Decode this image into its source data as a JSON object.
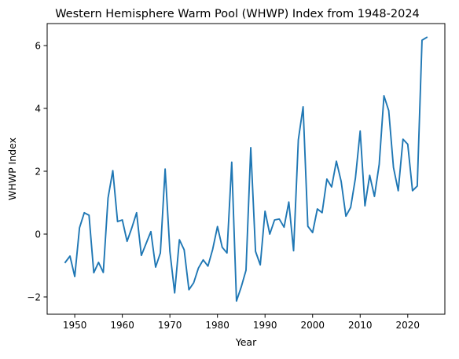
{
  "chart_data": {
    "type": "line",
    "title": "Western Hemisphere Warm Pool (WHWP) Index from 1948-2024",
    "xlabel": "Year",
    "ylabel": "WHWP Index",
    "xlim": [
      1944.2,
      2027.8
    ],
    "ylim": [
      -2.55,
      6.7
    ],
    "xticks": [
      1950,
      1960,
      1970,
      1980,
      1990,
      2000,
      2010,
      2020
    ],
    "xtick_labels": [
      "1950",
      "1960",
      "1970",
      "1980",
      "1990",
      "2000",
      "2010",
      "2020"
    ],
    "yticks": [
      -2,
      0,
      2,
      4,
      6
    ],
    "ytick_labels": [
      "−2",
      "0",
      "2",
      "4",
      "6"
    ],
    "grid": false,
    "legend": "none",
    "line_color": "#1f77b4",
    "x": [
      1948,
      1949,
      1950,
      1951,
      1952,
      1953,
      1954,
      1955,
      1956,
      1957,
      1958,
      1959,
      1960,
      1961,
      1962,
      1963,
      1964,
      1965,
      1966,
      1967,
      1968,
      1969,
      1970,
      1971,
      1972,
      1973,
      1974,
      1975,
      1976,
      1977,
      1978,
      1979,
      1980,
      1981,
      1982,
      1983,
      1984,
      1985,
      1986,
      1987,
      1988,
      1989,
      1990,
      1991,
      1992,
      1993,
      1994,
      1995,
      1996,
      1997,
      1998,
      1999,
      2000,
      2001,
      2002,
      2003,
      2004,
      2005,
      2006,
      2007,
      2008,
      2009,
      2010,
      2011,
      2012,
      2013,
      2014,
      2015,
      2016,
      2017,
      2018,
      2019,
      2020,
      2021,
      2022,
      2023,
      2024
    ],
    "y": [
      -0.9,
      -0.7,
      -1.35,
      0.2,
      0.68,
      0.6,
      -1.23,
      -0.9,
      -1.22,
      1.15,
      2.02,
      0.4,
      0.45,
      -0.23,
      0.2,
      0.68,
      -0.68,
      -0.3,
      0.08,
      -1.05,
      -0.6,
      2.07,
      -0.55,
      -1.87,
      -0.18,
      -0.5,
      -1.77,
      -1.55,
      -1.08,
      -0.82,
      -1.02,
      -0.48,
      0.24,
      -0.42,
      -0.6,
      2.29,
      -2.13,
      -1.68,
      -1.15,
      2.75,
      -0.55,
      -0.98,
      0.73,
      0.0,
      0.45,
      0.48,
      0.22,
      1.02,
      -0.53,
      3.0,
      4.05,
      0.25,
      0.05,
      0.8,
      0.68,
      1.75,
      1.5,
      2.32,
      1.68,
      0.57,
      0.85,
      1.78,
      3.28,
      0.9,
      1.87,
      1.2,
      2.22,
      4.4,
      3.93,
      2.12,
      1.38,
      3.02,
      2.86,
      1.38,
      1.53,
      6.17,
      6.26
    ]
  }
}
